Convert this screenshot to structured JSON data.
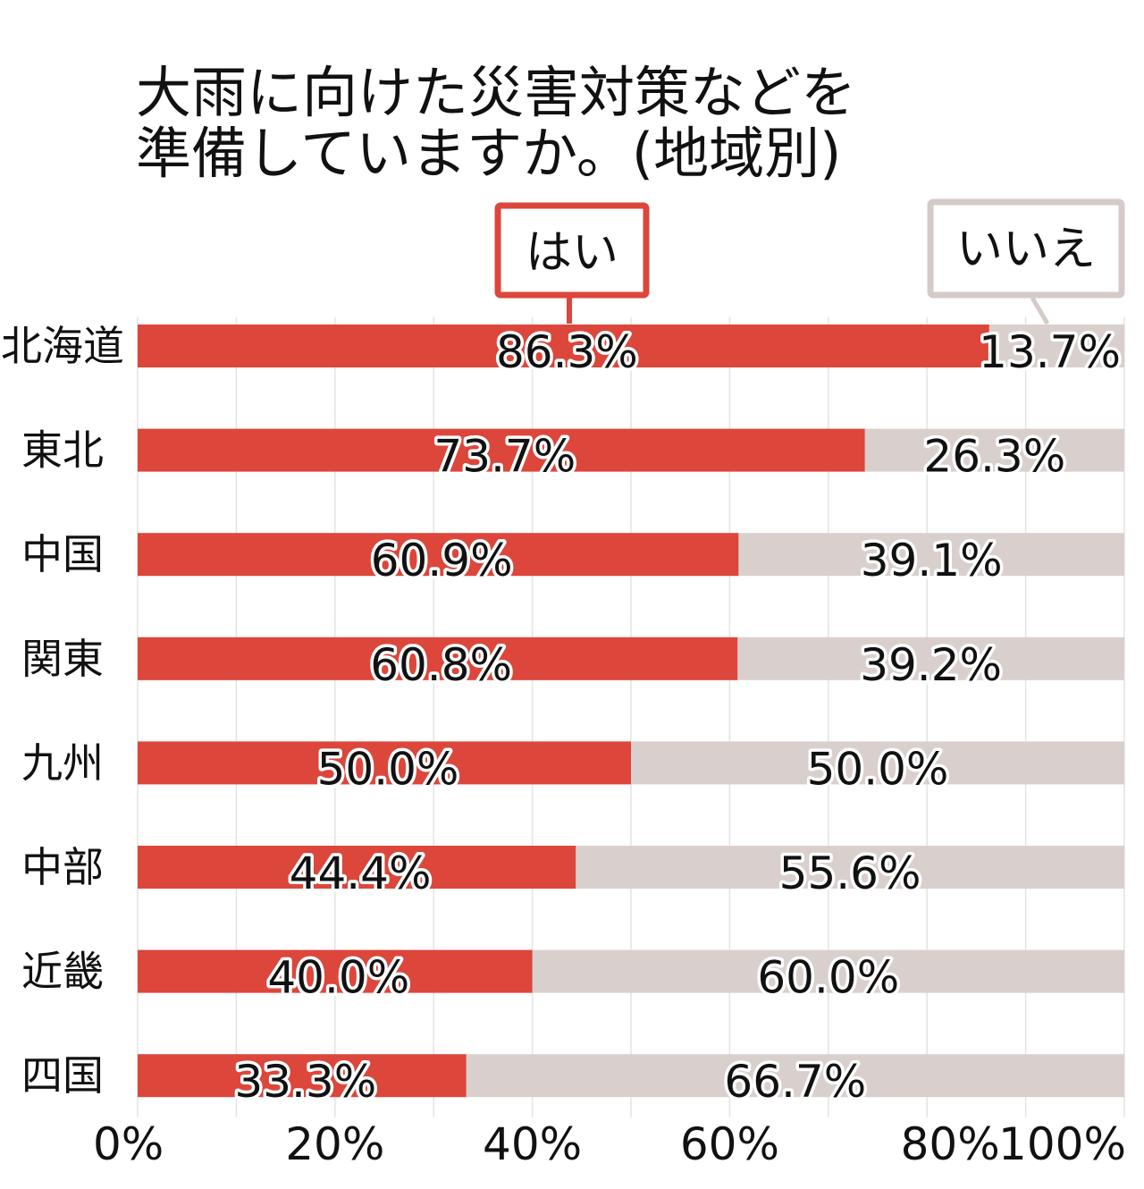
{
  "chart_data": {
    "type": "bar",
    "orientation": "horizontal",
    "stacked": true,
    "title": [
      "大雨に向けた災害対策などを",
      "準備していますか。(地域別)"
    ],
    "categories": [
      "北海道",
      "東北",
      "中国",
      "関東",
      "九州",
      "中部",
      "近畿",
      "四国"
    ],
    "series": [
      {
        "name": "はい",
        "values": [
          86.3,
          73.7,
          60.9,
          60.8,
          50.0,
          44.4,
          40.0,
          33.3
        ],
        "labels": [
          "86.3%",
          "73.7%",
          "60.9%",
          "60.8%",
          "50.0%",
          "44.4%",
          "40.0%",
          "33.3%"
        ]
      },
      {
        "name": "いいえ",
        "values": [
          13.7,
          26.3,
          39.1,
          39.2,
          50.0,
          55.6,
          60.0,
          66.7
        ],
        "labels": [
          "13.7%",
          "26.3%",
          "39.1%",
          "39.2%",
          "50.0%",
          "55.6%",
          "60.0%",
          "66.7%"
        ]
      }
    ],
    "xlim": [
      0,
      100
    ],
    "xticks": [
      "0%",
      "20%",
      "40%",
      "60%",
      "80%",
      "100%"
    ],
    "grid": true,
    "legend": "top, as callout boxes",
    "colors": {
      "yes": "#dc463b",
      "no": "#d9d0cd",
      "legend_no_border": "#d4cbc8",
      "grid": "#e3e3e3"
    }
  }
}
